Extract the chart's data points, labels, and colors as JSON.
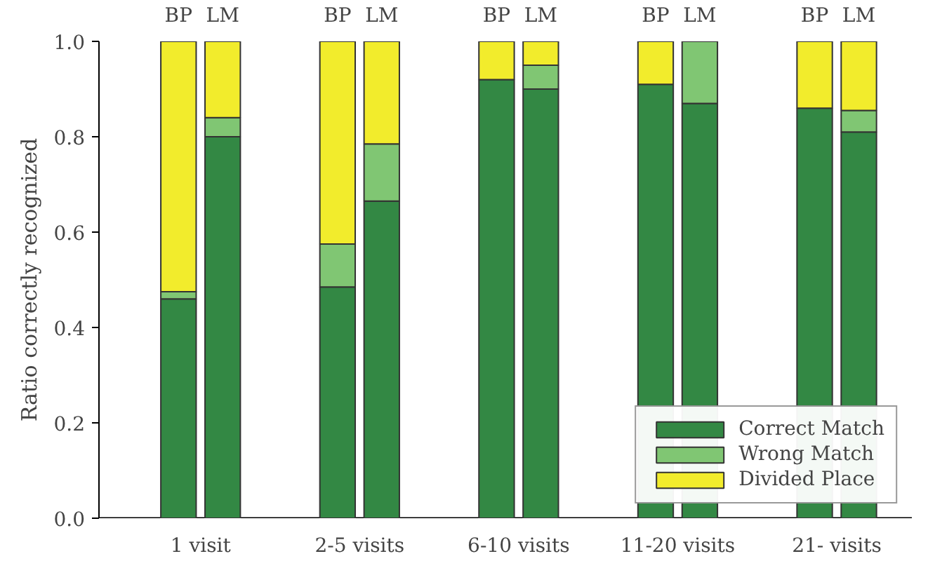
{
  "chart_data": {
    "type": "bar",
    "stacked": true,
    "ylabel": "Ratio correctly recognized",
    "categories": [
      "BP",
      "LM",
      "BP",
      "LM",
      "BP",
      "LM",
      "BP",
      "LM",
      "BP",
      "LM"
    ],
    "annotations": [
      "1 visit",
      "2-5 visits",
      "6-10 visits",
      "11-20 visits",
      "21- visits"
    ],
    "series": [
      {
        "name": "Correct Match",
        "color": "#338844",
        "values": [
          0.46,
          0.8,
          0.485,
          0.665,
          0.92,
          0.9,
          0.91,
          0.87,
          0.86,
          0.81
        ]
      },
      {
        "name": "Wrong Match",
        "color": "#80c673",
        "values": [
          0.015,
          0.04,
          0.09,
          0.12,
          0,
          0.05,
          0,
          0.13,
          0,
          0.045
        ]
      },
      {
        "name": "Divided Place",
        "color": "#f2ec2c",
        "values": [
          0.525,
          0.16,
          0.425,
          0.215,
          0.08,
          0.05,
          0.09,
          0,
          0.14,
          0.145
        ]
      }
    ],
    "ylim": [
      0,
      1
    ],
    "yticks": [
      {
        "value": 0,
        "label": "0.0"
      },
      {
        "value": 0.2,
        "label": "0.2"
      },
      {
        "value": 0.4,
        "label": "0.4"
      },
      {
        "value": 0.6,
        "label": "0.6"
      },
      {
        "value": 0.8,
        "label": "0.8"
      },
      {
        "value": 1,
        "label": "1.0"
      }
    ],
    "grid": false,
    "legend": "bottom right"
  }
}
